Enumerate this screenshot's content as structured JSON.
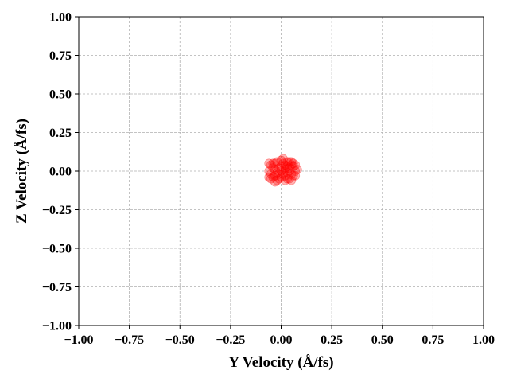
{
  "chart_data": {
    "type": "scatter",
    "xlabel": "Y Velocity (Å/fs)",
    "ylabel": "Z Velocity (Å/fs)",
    "xlim": [
      -1.0,
      1.0
    ],
    "ylim": [
      -1.0,
      1.0
    ],
    "xticks": [
      "−1.00",
      "−0.75",
      "−0.50",
      "−0.25",
      "0.00",
      "0.25",
      "0.50",
      "0.75",
      "1.00"
    ],
    "yticks": [
      "−1.00",
      "−0.75",
      "−0.50",
      "−0.25",
      "0.00",
      "0.25",
      "0.50",
      "0.75",
      "1.00"
    ],
    "grid": true,
    "marker_color": "#ff0000",
    "marker_alpha": 0.3,
    "series": [
      {
        "x": [
          0.0,
          0.02,
          -0.02,
          0.03,
          -0.03,
          0.01,
          -0.01,
          0.04,
          -0.04,
          0.05,
          -0.05,
          0.06,
          -0.06,
          0.07,
          0.08,
          -0.05,
          0.0,
          0.02,
          -0.02,
          0.03,
          -0.03,
          0.05,
          -0.04,
          0.06,
          -0.06,
          0.01,
          -0.01,
          0.04,
          0.07,
          -0.03,
          0.03,
          0.0,
          -0.02,
          0.02,
          0.05,
          -0.05,
          0.06,
          0.01,
          -0.04,
          0.04,
          0.02,
          0.0,
          -0.01,
          0.03,
          0.07,
          -0.06,
          0.05,
          0.04,
          -0.03,
          0.02
        ],
        "y": [
          0.0,
          0.01,
          -0.01,
          0.03,
          -0.03,
          0.05,
          -0.05,
          0.02,
          0.02,
          -0.02,
          -0.02,
          0.03,
          0.0,
          0.0,
          0.01,
          0.04,
          0.07,
          -0.06,
          0.06,
          -0.05,
          0.05,
          0.04,
          -0.04,
          -0.03,
          -0.04,
          -0.02,
          0.02,
          -0.05,
          -0.03,
          0.01,
          0.06,
          -0.04,
          -0.06,
          0.04,
          0.06,
          -0.05,
          0.05,
          0.08,
          0.05,
          0.06,
          -0.03,
          0.03,
          -0.02,
          -0.01,
          0.04,
          0.05,
          -0.06,
          0.0,
          -0.07,
          0.02
        ]
      }
    ]
  }
}
